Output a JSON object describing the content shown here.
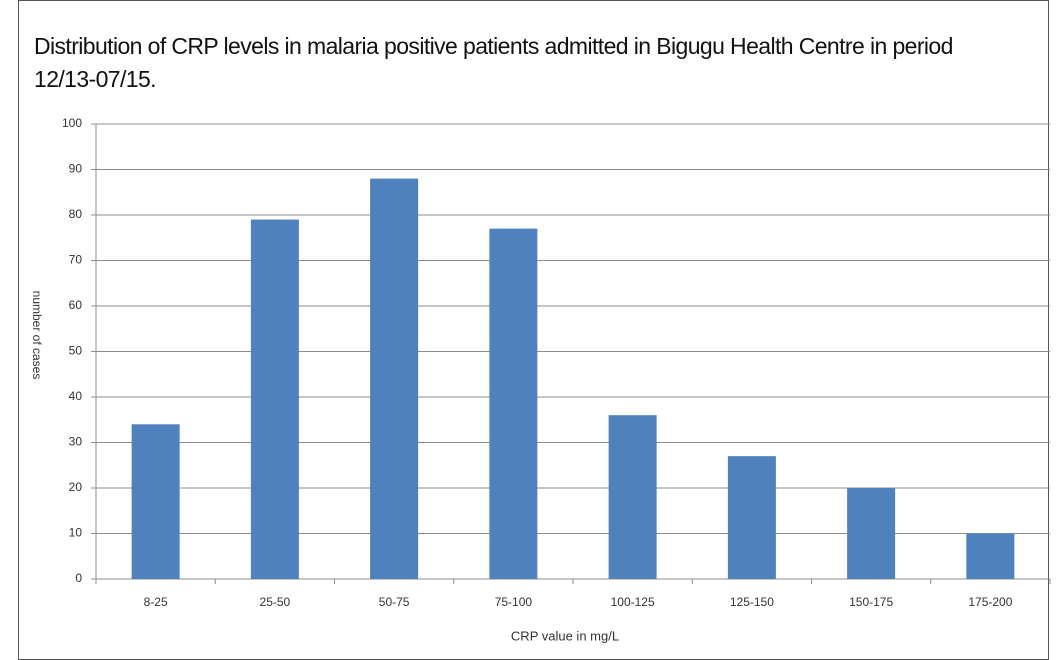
{
  "chart_data": {
    "type": "bar",
    "title": "Distribution of CRP levels in malaria positive patients admitted in Bigugu Health Centre in period 12/13-07/15.",
    "x_label": "CRP  value  in  mg/L",
    "y_label": "number of cases",
    "categories": [
      "8-25",
      "25-50",
      "50-75",
      "75-100",
      "100-125",
      "125-150",
      "150-175",
      "175-200"
    ],
    "values": [
      34,
      79,
      88,
      77,
      36,
      27,
      20,
      10
    ],
    "color": "#4f81bd",
    "ylim": [
      0,
      100
    ],
    "yticks": [
      0,
      10,
      20,
      30,
      40,
      50,
      60,
      70,
      80,
      90,
      100
    ],
    "grid": true
  }
}
